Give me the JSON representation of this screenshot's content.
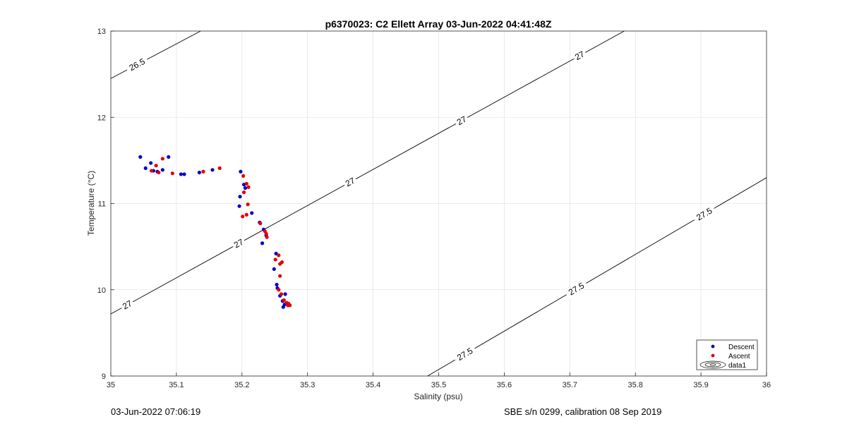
{
  "chart_data": {
    "type": "scatter",
    "title": "p6370023: C2 Ellett Array 03-Jun-2022 04:41:48Z",
    "xlabel": "Salinity (psu)",
    "ylabel": "Temperature (°C)",
    "xlim": [
      35,
      36
    ],
    "ylim": [
      9,
      13
    ],
    "xticks": [
      35,
      35.1,
      35.2,
      35.3,
      35.4,
      35.5,
      35.6,
      35.7,
      35.8,
      35.9,
      36
    ],
    "xtick_labels": [
      "35",
      "35.1",
      "35.2",
      "35.3",
      "35.4",
      "35.5",
      "35.6",
      "35.7",
      "35.8",
      "35.9",
      "36"
    ],
    "yticks": [
      9,
      10,
      11,
      12,
      13
    ],
    "ytick_labels": [
      "9",
      "10",
      "11",
      "12",
      "13"
    ],
    "grid": true,
    "legend_position": "bottom-right",
    "legend": [
      {
        "label": "Descent",
        "color": "#0000cc",
        "marker": "dot"
      },
      {
        "label": "Ascent",
        "color": "#e00000",
        "marker": "dot"
      },
      {
        "label": "data1",
        "color": "#000000",
        "marker": "contour"
      }
    ],
    "series": [
      {
        "name": "Descent",
        "color": "#0000cc",
        "points": [
          [
            35.045,
            11.54
          ],
          [
            35.053,
            11.41
          ],
          [
            35.061,
            11.47
          ],
          [
            35.065,
            11.38
          ],
          [
            35.071,
            11.37
          ],
          [
            35.079,
            11.39
          ],
          [
            35.088,
            11.54
          ],
          [
            35.107,
            11.34
          ],
          [
            35.112,
            11.34
          ],
          [
            35.135,
            11.36
          ],
          [
            35.155,
            11.39
          ],
          [
            35.198,
            11.37
          ],
          [
            35.203,
            11.22
          ],
          [
            35.205,
            11.18
          ],
          [
            35.197,
            11.08
          ],
          [
            35.196,
            10.97
          ],
          [
            35.215,
            10.89
          ],
          [
            35.227,
            10.78
          ],
          [
            35.233,
            10.7
          ],
          [
            35.231,
            10.54
          ],
          [
            35.237,
            10.63
          ],
          [
            35.252,
            10.42
          ],
          [
            35.249,
            10.24
          ],
          [
            35.253,
            10.06
          ],
          [
            35.254,
            10.02
          ],
          [
            35.258,
            9.93
          ],
          [
            35.262,
            9.87
          ],
          [
            35.263,
            9.8
          ],
          [
            35.265,
            9.83
          ],
          [
            35.266,
            9.95
          ]
        ]
      },
      {
        "name": "Ascent",
        "color": "#e00000",
        "points": [
          [
            35.062,
            11.38
          ],
          [
            35.069,
            11.44
          ],
          [
            35.073,
            11.36
          ],
          [
            35.079,
            11.52
          ],
          [
            35.094,
            11.35
          ],
          [
            35.141,
            11.37
          ],
          [
            35.166,
            11.41
          ],
          [
            35.202,
            11.32
          ],
          [
            35.207,
            11.23
          ],
          [
            35.21,
            11.19
          ],
          [
            35.203,
            11.13
          ],
          [
            35.209,
            10.99
          ],
          [
            35.201,
            10.85
          ],
          [
            35.207,
            10.87
          ],
          [
            35.228,
            10.77
          ],
          [
            35.235,
            10.68
          ],
          [
            35.238,
            10.61
          ],
          [
            35.237,
            10.65
          ],
          [
            35.256,
            10.4
          ],
          [
            35.251,
            10.35
          ],
          [
            35.258,
            10.3
          ],
          [
            35.261,
            10.32
          ],
          [
            35.258,
            10.16
          ],
          [
            35.256,
            10.0
          ],
          [
            35.26,
            9.95
          ],
          [
            35.264,
            9.88
          ],
          [
            35.268,
            9.85
          ],
          [
            35.271,
            9.84
          ],
          [
            35.273,
            9.82
          ],
          [
            35.27,
            9.82
          ]
        ]
      }
    ],
    "contours": [
      {
        "label": "26.5",
        "points": [
          [
            35.0,
            12.45
          ],
          [
            35.137,
            13.0
          ]
        ],
        "label_positions": [
          35.04
        ]
      },
      {
        "label": "27",
        "points": [
          [
            35.0,
            9.72
          ],
          [
            35.783,
            13.0
          ]
        ],
        "label_positions": [
          35.025,
          35.195,
          35.365,
          35.535,
          35.715
        ]
      },
      {
        "label": "27.5",
        "points": [
          [
            35.483,
            9.0
          ],
          [
            36.0,
            11.3
          ]
        ],
        "label_positions": [
          35.54,
          35.71,
          35.905
        ]
      }
    ]
  },
  "footer": {
    "left": "03-Jun-2022 07:06:19",
    "right": "SBE s/n 0299, calibration 08 Sep 2019"
  }
}
